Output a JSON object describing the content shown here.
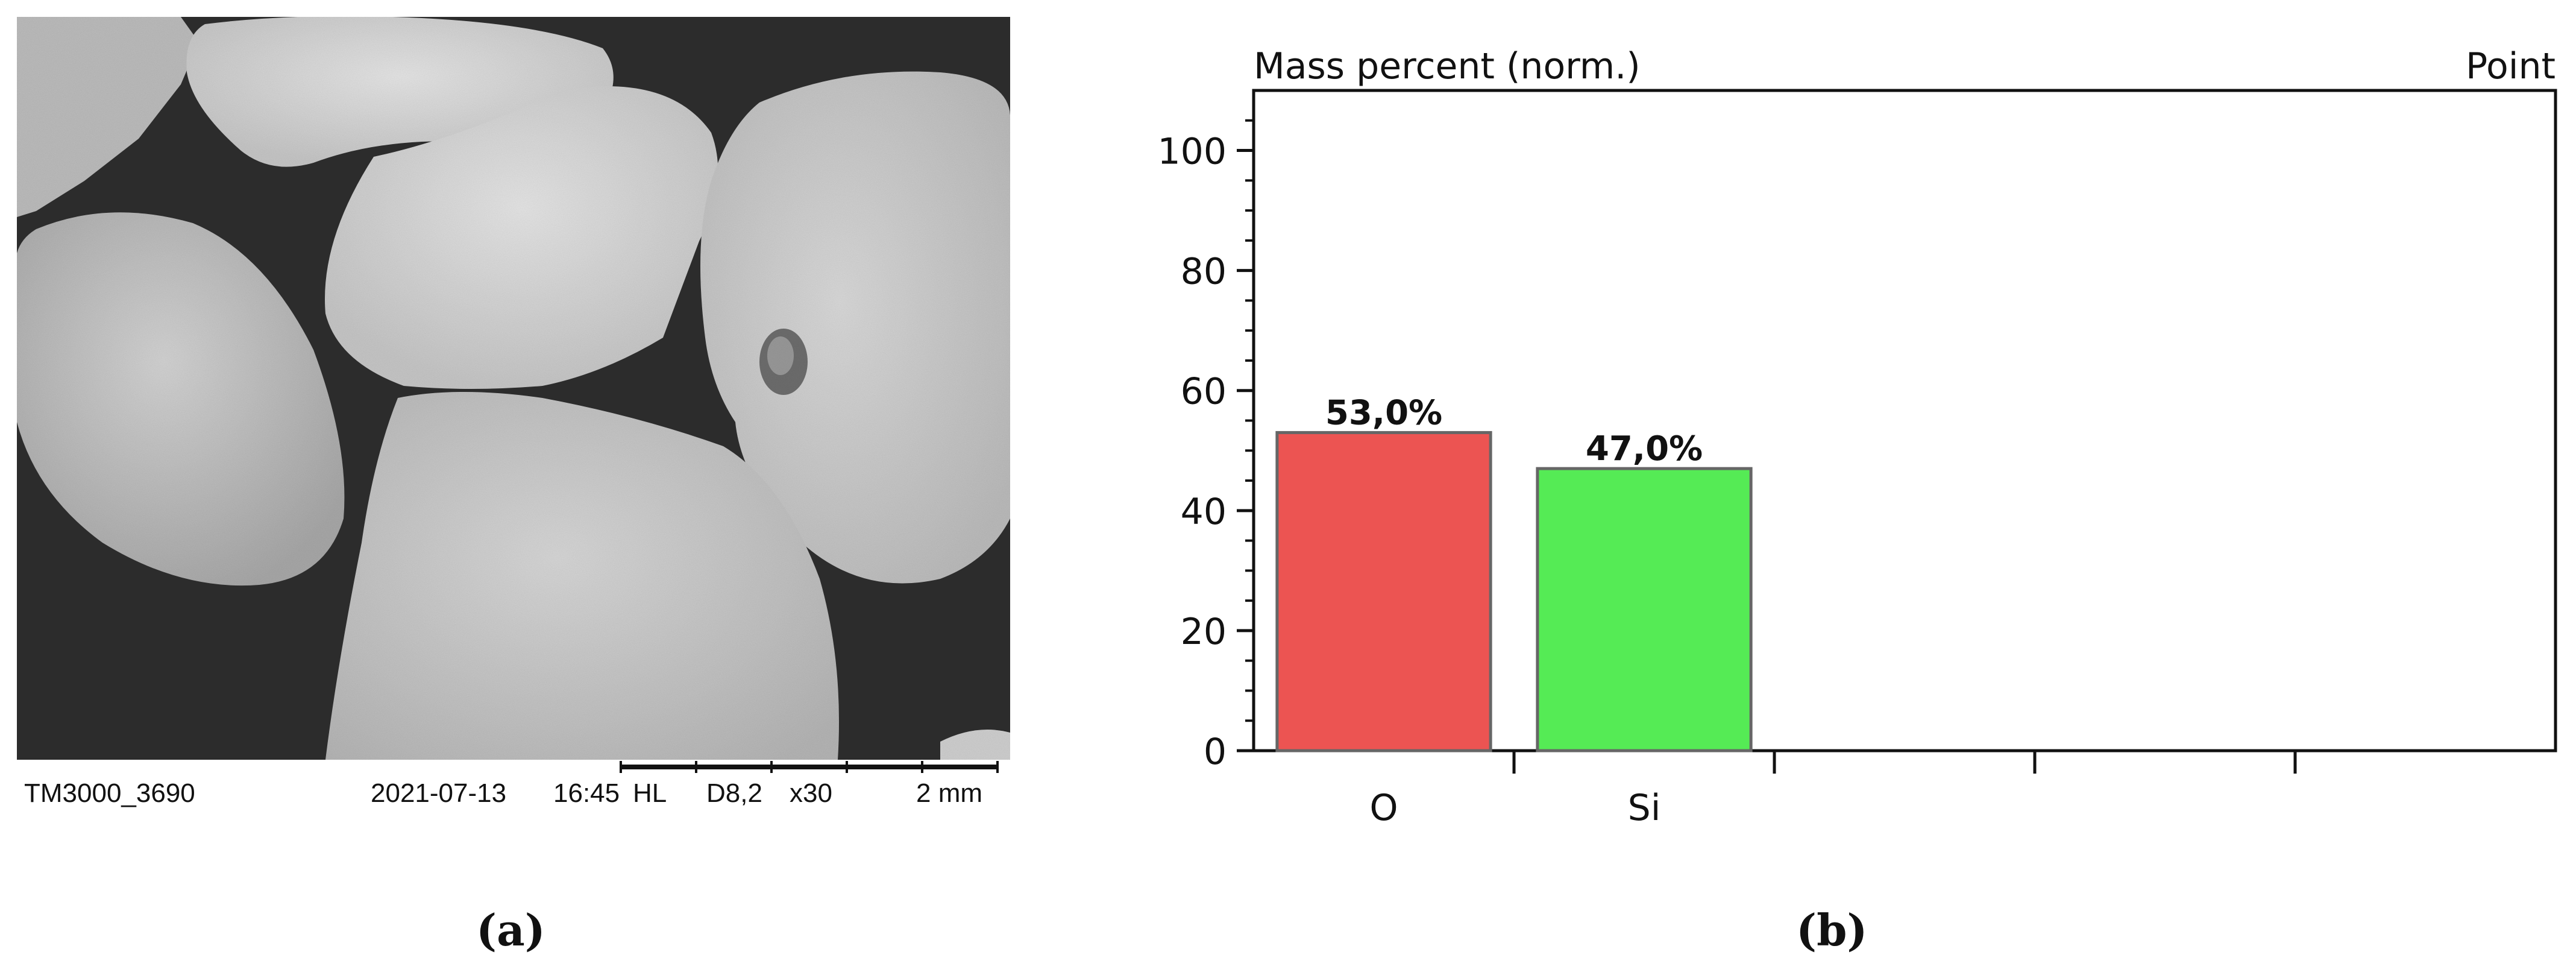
{
  "sem_image": {
    "caption": "(a)",
    "info_bar": {
      "instrument": "TM3000_3690",
      "date": "2021-07-13",
      "time": "16:45",
      "mode": "HL",
      "working_distance": "D8,2",
      "magnification": "x30",
      "scale": "2 mm"
    }
  },
  "chart_caption": "(b)",
  "chart_data": {
    "type": "bar",
    "title": "Mass percent (norm.)",
    "mode_label": "Point",
    "categories": [
      "O",
      "Si"
    ],
    "values": [
      53.0,
      47.0
    ],
    "value_labels": [
      "53,0%",
      "47,0%"
    ],
    "colors": [
      "#ec5452",
      "#55eb55"
    ],
    "edge_color": "#666666",
    "ylim": [
      0,
      110
    ],
    "yticks": [
      0,
      20,
      40,
      60,
      80,
      100
    ],
    "total_slots": 5,
    "grid": false
  }
}
